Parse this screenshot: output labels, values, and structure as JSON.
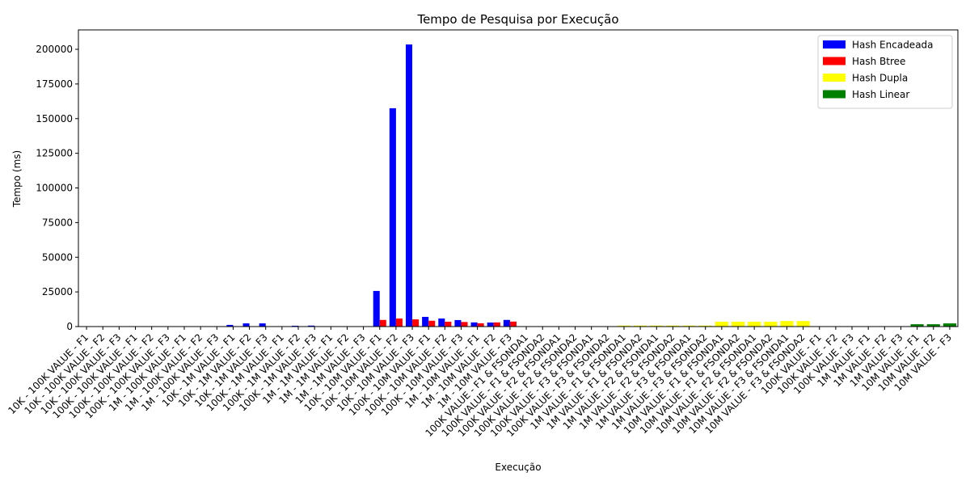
{
  "chart_data": {
    "type": "bar",
    "title": "Tempo de Pesquisa por Execução",
    "xlabel": "Execução",
    "ylabel": "Tempo (ms)",
    "categories": [
      "10K - 100K VALUE - F1",
      "10K - 100K VALUE - F2",
      "10K - 100K VALUE - F3",
      "100K - 100K VALUE - F1",
      "100K - 100K VALUE - F2",
      "100K - 100K VALUE - F3",
      "1M - 100K VALUE - F1",
      "1M - 100K VALUE - F2",
      "1M - 100K VALUE - F3",
      "10K - 1M VALUE - F1",
      "10K - 1M VALUE - F2",
      "10K - 1M VALUE - F3",
      "100K - 1M VALUE - F1",
      "100K - 1M VALUE - F2",
      "100K - 1M VALUE - F3",
      "1M - 1M VALUE - F1",
      "1M - 1M VALUE - F2",
      "1M - 1M VALUE - F3",
      "10K - 10M VALUE - F1",
      "10K - 10M VALUE - F2",
      "10K - 10M VALUE - F3",
      "100K - 10M VALUE - F1",
      "100K - 10M VALUE - F2",
      "100K - 10M VALUE - F3",
      "1M - 10M VALUE - F1",
      "1M - 10M VALUE - F2",
      "1M - 10M VALUE - F3",
      "100K VALUE - F1 & FSONDA1",
      "100K VALUE - F1 & FSONDA2",
      "100K VALUE - F2 & FSONDA1",
      "100K VALUE - F2 & FSONDA2",
      "100K VALUE - F3 & FSONDA1",
      "100K VALUE - F3 & FSONDA2",
      "1M VALUE - F1 & FSONDA1",
      "1M VALUE - F1 & FSONDA2",
      "1M VALUE - F2 & FSONDA1",
      "1M VALUE - F2 & FSONDA2",
      "1M VALUE - F3 & FSONDA1",
      "1M VALUE - F3 & FSONDA2",
      "10M VALUE - F1 & FSONDA1",
      "10M VALUE - F1 & FSONDA2",
      "10M VALUE - F2 & FSONDA1",
      "10M VALUE - F2 & FSONDA2",
      "10M VALUE - F3 & FSONDA1",
      "10M VALUE - F3 & FSONDA2",
      "100K VALUE - F1",
      "100K VALUE - F2",
      "100K VALUE - F3",
      "1M VALUE - F1",
      "1M VALUE - F2",
      "1M VALUE - F3",
      "10M VALUE - F1",
      "10M VALUE - F2",
      "10M VALUE - F3"
    ],
    "series": [
      {
        "name": "Hash Encadeada",
        "color": "#0000ff",
        "values": [
          50,
          50,
          50,
          50,
          50,
          50,
          50,
          50,
          50,
          1200,
          2300,
          2300,
          300,
          600,
          700,
          100,
          100,
          100,
          25700,
          157500,
          203500,
          7000,
          5800,
          4700,
          3000,
          2900,
          4800,
          null,
          null,
          null,
          null,
          null,
          null,
          null,
          null,
          null,
          null,
          null,
          null,
          null,
          null,
          null,
          null,
          null,
          null,
          null,
          null,
          null,
          null,
          null,
          null,
          null,
          null,
          null
        ]
      },
      {
        "name": "Hash Btree",
        "color": "#ff0000",
        "values": [
          50,
          50,
          50,
          50,
          50,
          50,
          50,
          50,
          50,
          100,
          100,
          100,
          100,
          100,
          100,
          100,
          100,
          100,
          4800,
          5800,
          5200,
          4200,
          3500,
          3300,
          2400,
          3000,
          3600,
          null,
          null,
          null,
          null,
          null,
          null,
          null,
          null,
          null,
          null,
          null,
          null,
          null,
          null,
          null,
          null,
          null,
          null,
          null,
          null,
          null,
          null,
          null,
          null,
          null,
          null,
          null
        ]
      },
      {
        "name": "Hash Dupla",
        "color": "#ffff00",
        "values": [
          null,
          null,
          null,
          null,
          null,
          null,
          null,
          null,
          null,
          null,
          null,
          null,
          null,
          null,
          null,
          null,
          null,
          null,
          null,
          null,
          null,
          null,
          null,
          null,
          null,
          null,
          null,
          100,
          100,
          100,
          100,
          100,
          100,
          700,
          700,
          700,
          700,
          700,
          700,
          3500,
          3500,
          3500,
          3500,
          4000,
          4000,
          null,
          null,
          null,
          null,
          null,
          null,
          null,
          null,
          null
        ]
      },
      {
        "name": "Hash Linear",
        "color": "#008000",
        "values": [
          null,
          null,
          null,
          null,
          null,
          null,
          null,
          null,
          null,
          null,
          null,
          null,
          null,
          null,
          null,
          null,
          null,
          null,
          null,
          null,
          null,
          null,
          null,
          null,
          null,
          null,
          null,
          null,
          null,
          null,
          null,
          null,
          null,
          null,
          null,
          null,
          null,
          null,
          null,
          null,
          null,
          null,
          null,
          null,
          null,
          100,
          100,
          100,
          100,
          100,
          100,
          1700,
          1700,
          2300
        ]
      }
    ],
    "ylim": [
      0,
      214000
    ],
    "yticks": [
      0,
      25000,
      50000,
      75000,
      100000,
      125000,
      150000,
      175000,
      200000
    ],
    "legend": "upper right"
  }
}
